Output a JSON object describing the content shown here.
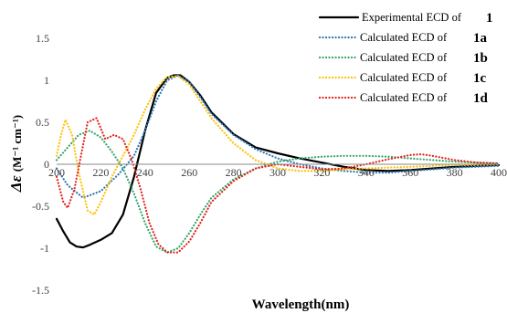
{
  "chart_data": {
    "type": "line",
    "xlabel": "Wavelength(nm)",
    "ylabel_symbol": "Δε",
    "ylabel_unit": "(M⁻¹ cm⁻¹)",
    "xlim": [
      200,
      400
    ],
    "ylim": [
      -1.5,
      1.5
    ],
    "x_ticks": [
      200,
      220,
      240,
      260,
      280,
      300,
      320,
      340,
      360,
      380,
      400
    ],
    "y_ticks": [
      1.5,
      1,
      0.5,
      0,
      -0.5,
      -1,
      -1.5
    ],
    "y_tick_labels": [
      "1.5",
      "1",
      "0.5",
      "0",
      "-0.5",
      "-1",
      "-1.5"
    ],
    "grid": false,
    "legend_position": "top-right",
    "series": [
      {
        "name": "Experimental ECD of",
        "compound": "1",
        "color": "#000000",
        "style": "solid",
        "x": [
          200,
          203,
          206,
          209,
          212,
          215,
          220,
          225,
          230,
          235,
          240,
          245,
          250,
          253,
          256,
          260,
          265,
          270,
          280,
          290,
          300,
          310,
          320,
          330,
          340,
          350,
          360,
          370,
          380,
          390,
          400
        ],
        "y": [
          -0.65,
          -0.8,
          -0.93,
          -0.98,
          -0.99,
          -0.96,
          -0.9,
          -0.82,
          -0.6,
          -0.15,
          0.4,
          0.85,
          1.03,
          1.06,
          1.06,
          0.98,
          0.82,
          0.62,
          0.36,
          0.2,
          0.13,
          0.07,
          0.02,
          -0.03,
          -0.07,
          -0.08,
          -0.07,
          -0.05,
          -0.03,
          -0.02,
          -0.01
        ]
      },
      {
        "name": "Calculated ECD of",
        "compound": "1a",
        "color": "#2e75b6",
        "style": "dotted",
        "x": [
          200,
          205,
          212,
          220,
          228,
          235,
          240,
          245,
          250,
          255,
          260,
          265,
          270,
          280,
          290,
          300,
          310,
          320,
          330,
          340,
          350,
          360,
          370,
          380,
          390,
          400
        ],
        "y": [
          -0.05,
          -0.25,
          -0.4,
          -0.32,
          -0.12,
          0.1,
          0.4,
          0.75,
          1.0,
          1.06,
          0.98,
          0.8,
          0.6,
          0.35,
          0.18,
          0.07,
          0.0,
          -0.05,
          -0.08,
          -0.1,
          -0.1,
          -0.08,
          -0.06,
          -0.04,
          -0.03,
          -0.02
        ]
      },
      {
        "name": "Calculated ECD of",
        "compound": "1b",
        "color": "#33a66a",
        "style": "dotted",
        "x": [
          200,
          205,
          210,
          215,
          220,
          225,
          230,
          235,
          240,
          245,
          250,
          255,
          260,
          265,
          270,
          280,
          290,
          300,
          310,
          320,
          330,
          340,
          350,
          360,
          370,
          380,
          390,
          400
        ],
        "y": [
          0.05,
          0.2,
          0.35,
          0.4,
          0.32,
          0.15,
          -0.05,
          -0.35,
          -0.7,
          -0.98,
          -1.05,
          -1.0,
          -0.82,
          -0.6,
          -0.4,
          -0.18,
          -0.05,
          0.03,
          0.07,
          0.09,
          0.1,
          0.1,
          0.09,
          0.07,
          0.05,
          0.03,
          0.02,
          0.01
        ]
      },
      {
        "name": "Calculated ECD of",
        "compound": "1c",
        "color": "#ffc000",
        "style": "dotted",
        "x": [
          200,
          202,
          204,
          207,
          210,
          214,
          217,
          220,
          225,
          230,
          235,
          240,
          245,
          250,
          255,
          260,
          265,
          270,
          280,
          290,
          300,
          310,
          320,
          330,
          340,
          350,
          360,
          370,
          380,
          390,
          400
        ],
        "y": [
          0.1,
          0.35,
          0.53,
          0.35,
          -0.1,
          -0.55,
          -0.6,
          -0.45,
          -0.15,
          0.1,
          0.35,
          0.65,
          0.9,
          1.04,
          1.05,
          0.95,
          0.75,
          0.55,
          0.25,
          0.05,
          -0.05,
          -0.08,
          -0.08,
          -0.06,
          -0.05,
          -0.04,
          -0.03,
          -0.02,
          -0.01,
          -0.01,
          0.0
        ]
      },
      {
        "name": "Calculated ECD of",
        "compound": "1d",
        "color": "#e32219",
        "style": "dotted",
        "x": [
          200,
          203,
          205,
          208,
          211,
          214,
          218,
          222,
          226,
          230,
          234,
          238,
          242,
          246,
          250,
          255,
          260,
          265,
          270,
          280,
          290,
          300,
          310,
          320,
          330,
          340,
          350,
          360,
          365,
          370,
          380,
          390,
          400
        ],
        "y": [
          -0.15,
          -0.45,
          -0.52,
          -0.3,
          0.1,
          0.5,
          0.55,
          0.3,
          0.35,
          0.3,
          0.05,
          -0.3,
          -0.7,
          -0.95,
          -1.05,
          -1.05,
          -0.92,
          -0.7,
          -0.45,
          -0.2,
          -0.05,
          0.0,
          -0.03,
          -0.06,
          -0.05,
          0.0,
          0.06,
          0.11,
          0.12,
          0.1,
          0.05,
          0.02,
          0.01
        ]
      }
    ]
  }
}
